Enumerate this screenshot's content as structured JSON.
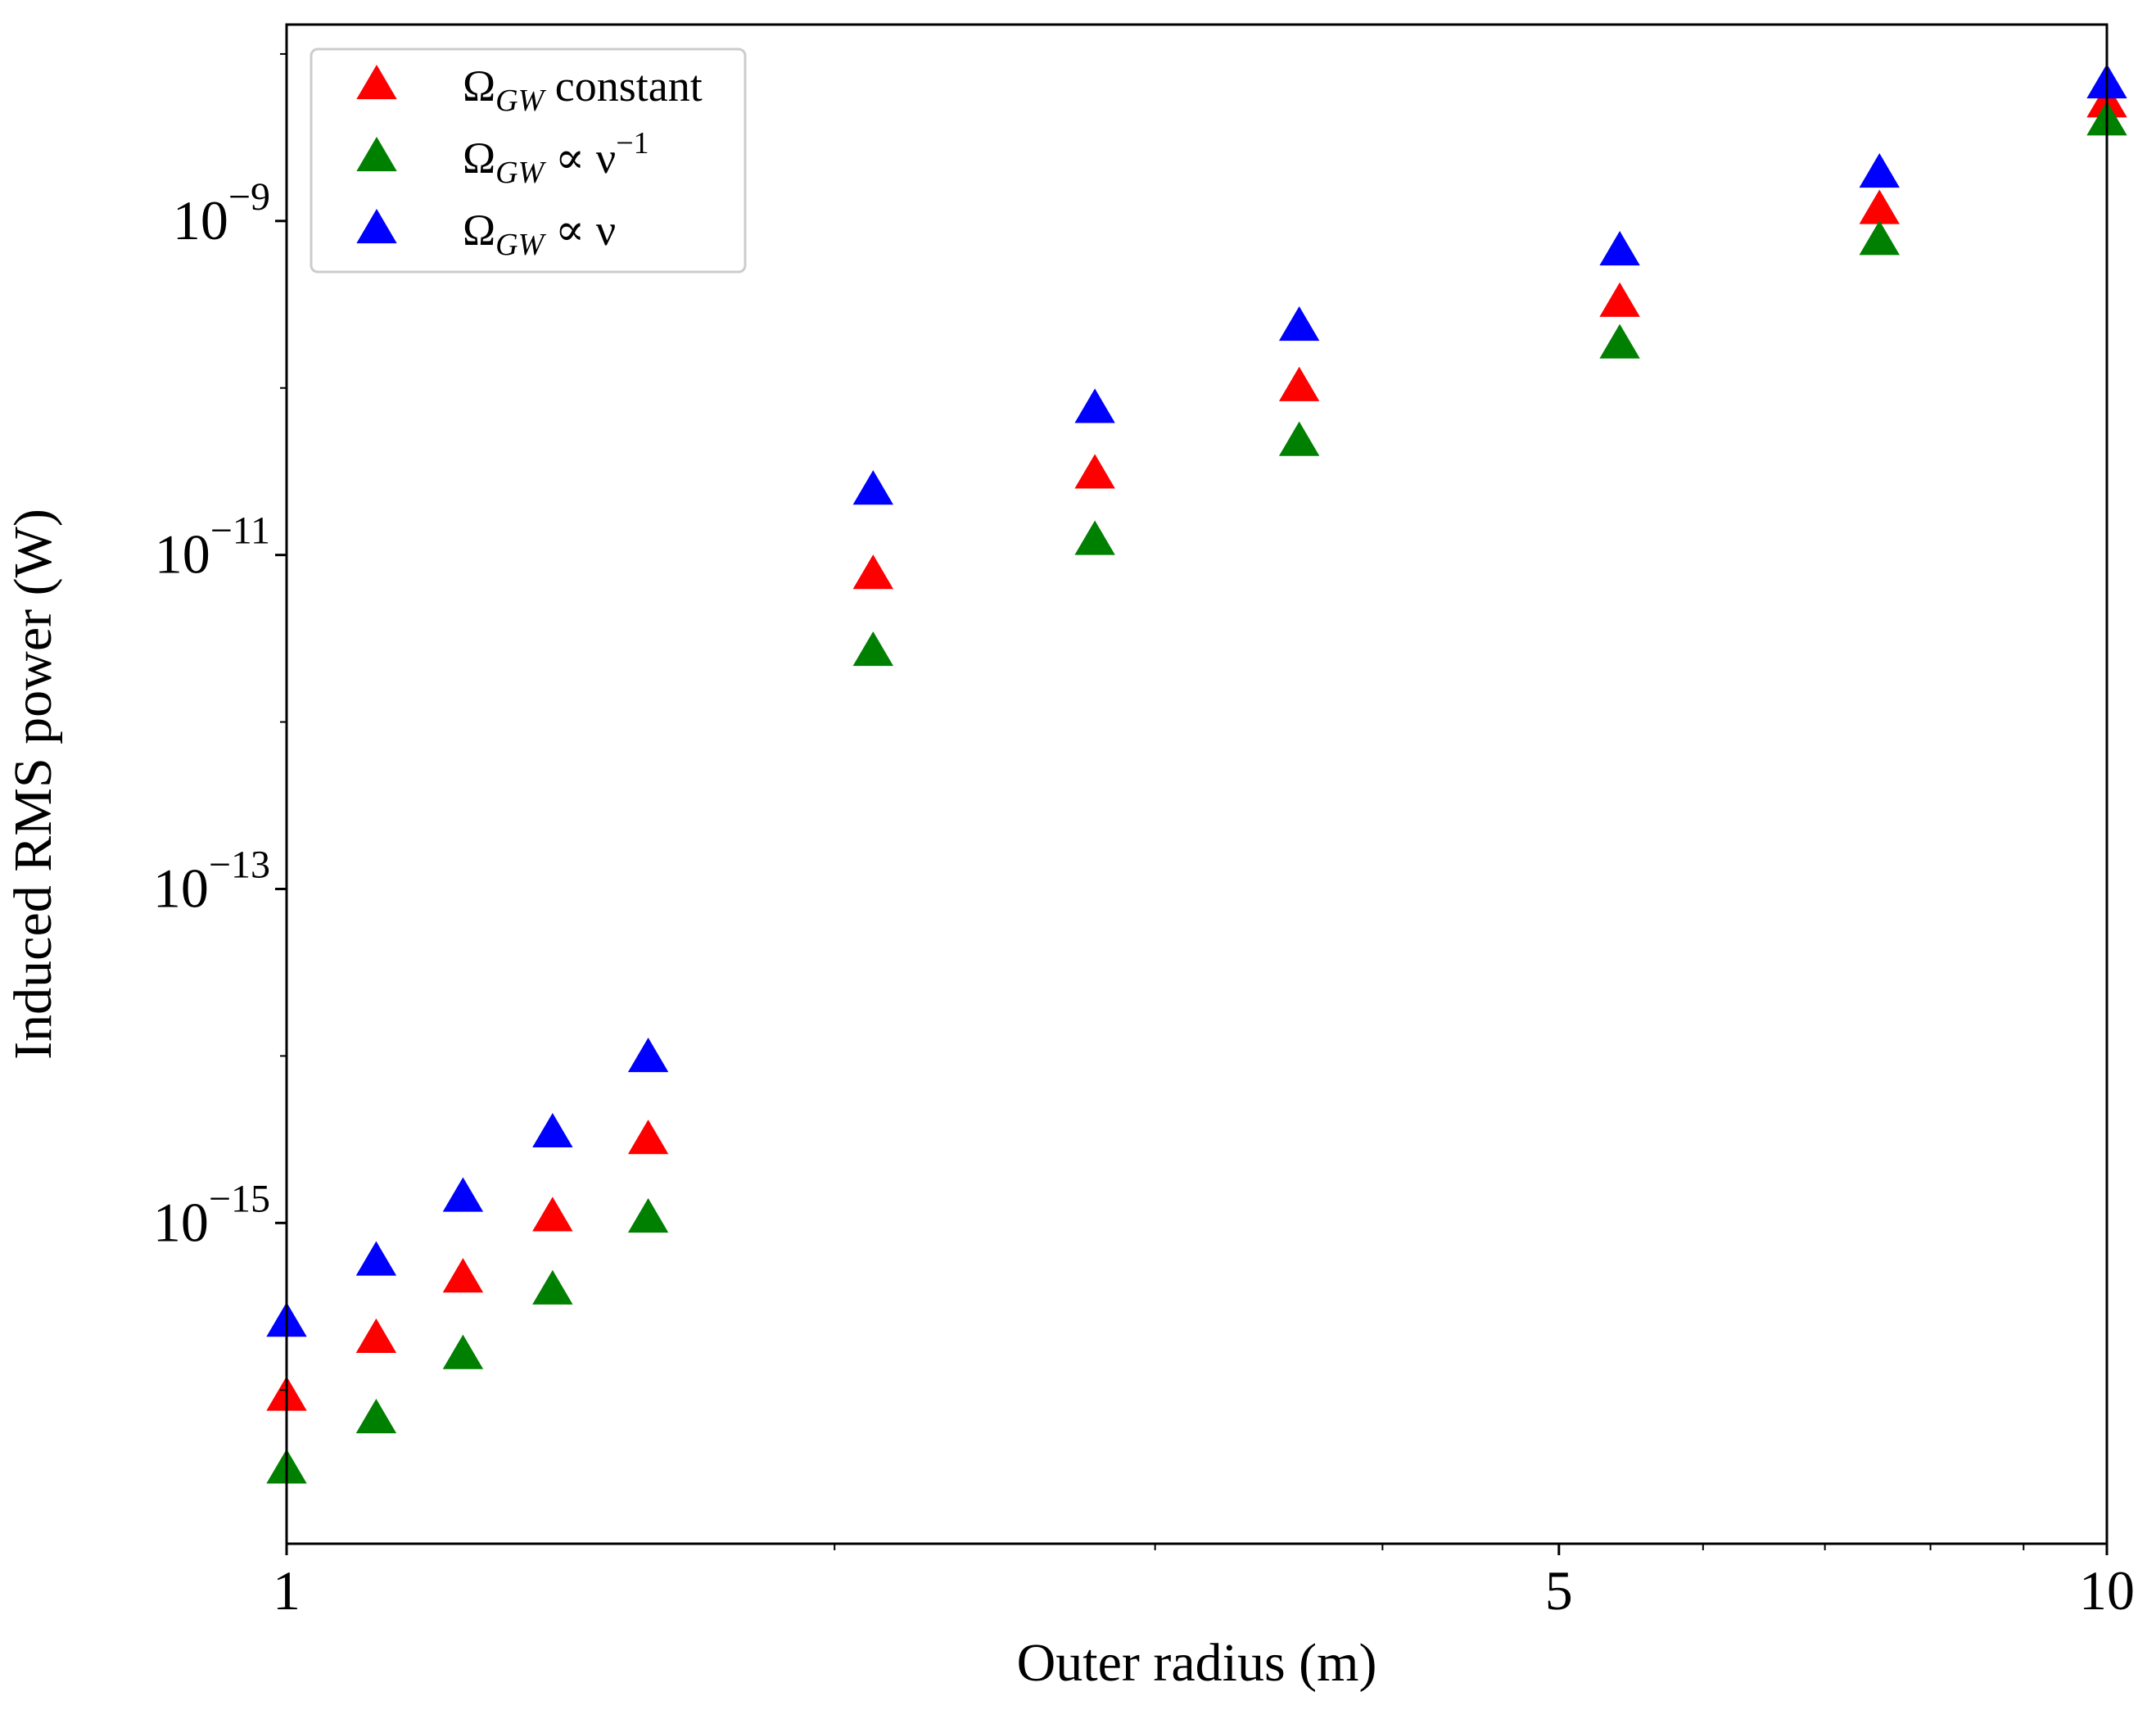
{
  "chart_data": {
    "type": "scatter",
    "xlabel": "Outer radius (m)",
    "ylabel": "Induced RMS power (W)",
    "x_scale": "log",
    "y_scale": "log",
    "xlim": [
      1,
      10
    ],
    "ylim": [
      1.2e-17,
      1.5e-08
    ],
    "x_ticks": [
      {
        "value": 1,
        "label": "1"
      },
      {
        "value": 5,
        "label": "5"
      },
      {
        "value": 10,
        "label": "10"
      }
    ],
    "y_ticks": [
      {
        "value": 1e-15,
        "base": "10",
        "exp": "−15"
      },
      {
        "value": 1e-13,
        "base": "10",
        "exp": "−13"
      },
      {
        "value": 1e-11,
        "base": "10",
        "exp": "−11"
      },
      {
        "value": 1e-09,
        "base": "10",
        "exp": "−9"
      }
    ],
    "grid": false,
    "legend_position": "top-left",
    "marker": "triangle",
    "x": [
      1.0,
      1.12,
      1.25,
      1.4,
      1.58,
      2.1,
      2.78,
      3.6,
      5.4,
      7.5,
      10.0
    ],
    "series": [
      {
        "name": "Ω_GW constant",
        "legend_main": "Ω",
        "legend_sub": "GW",
        "legend_tail": " constant",
        "legend_sup": "",
        "color": "#ff0000",
        "values": [
          9e-17,
          2e-16,
          4.6e-16,
          1.07e-15,
          3.1e-15,
          7.5e-12,
          3e-11,
          1e-10,
          3.2e-10,
          1.15e-09,
          5e-09
        ]
      },
      {
        "name": "Ω_GW ∝ ν^−1",
        "legend_main": "Ω",
        "legend_sub": "GW",
        "legend_tail": " ∝ ν",
        "legend_sup": "−1",
        "color": "#008000",
        "values": [
          3.3e-17,
          6.6e-17,
          1.6e-16,
          3.9e-16,
          1.05e-15,
          2.6e-12,
          1.2e-11,
          4.7e-11,
          1.8e-10,
          7.5e-10,
          3.9e-09
        ]
      },
      {
        "name": "Ω_GW ∝ ν",
        "legend_main": "Ω",
        "legend_sub": "GW",
        "legend_tail": " ∝ ν",
        "legend_sup": "",
        "color": "#0000ff",
        "values": [
          2.5e-16,
          5.8e-16,
          1.4e-15,
          3.4e-15,
          9.6e-15,
          2.4e-11,
          7.4e-11,
          2.3e-10,
          6.5e-10,
          1.9e-09,
          6.5e-09
        ]
      }
    ]
  }
}
